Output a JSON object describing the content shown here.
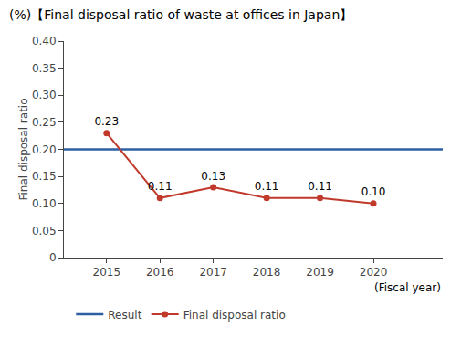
{
  "chart_data": {
    "type": "line",
    "title": "(%)【Final disposal ratio of waste at offices in Japan】",
    "xlabel": "(Fiscal year)",
    "ylabel": "Final disposal ratio",
    "x": [
      2015,
      2016,
      2017,
      2018,
      2019,
      2020
    ],
    "xlim": [
      2014.2,
      2021.3
    ],
    "xticks": [
      2015,
      2016,
      2017,
      2018,
      2019,
      2020
    ],
    "ylim": [
      0,
      0.4
    ],
    "yticks": [
      0,
      0.05,
      {
        "value": 0.1,
        "label": "0.10"
      },
      0.15,
      {
        "value": 0.2,
        "label": "0.20"
      },
      0.25,
      {
        "value": 0.3,
        "label": "0.30"
      },
      0.35,
      {
        "value": 0.4,
        "label": "0.40"
      }
    ],
    "reference_line": {
      "name": "Result",
      "value": 0.2,
      "color": "#2e5fa3"
    },
    "series": [
      {
        "name": "Final disposal ratio",
        "color": "#c0392b",
        "marker": "circle",
        "values": [
          0.23,
          0.11,
          0.13,
          0.11,
          0.11,
          0.1
        ],
        "value_labels": [
          "0.23",
          "0.11",
          "0.13",
          "0.11",
          "0.11",
          "0.10"
        ]
      }
    ],
    "data_labels": true,
    "legend": "bottom",
    "grid": false
  }
}
